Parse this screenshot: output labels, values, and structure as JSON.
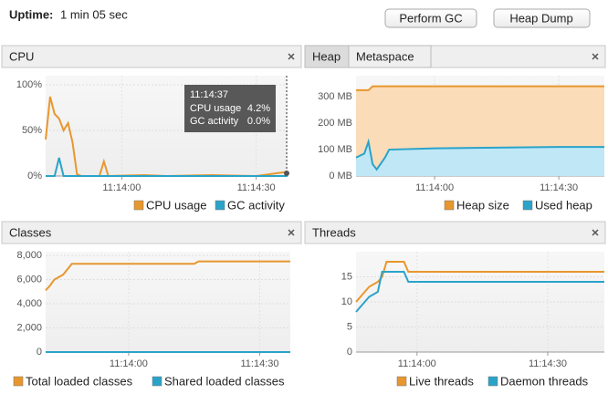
{
  "header": {
    "uptime_label": "Uptime:",
    "uptime_value": "1 min 05 sec",
    "buttons": [
      "Perform GC",
      "Heap Dump"
    ]
  },
  "chart_data": [
    {
      "type": "line",
      "title": "CPU",
      "x": [
        "11:13:43",
        "11:13:44",
        "11:13:45",
        "11:13:46",
        "11:13:47",
        "11:13:48",
        "11:13:49",
        "11:13:50",
        "11:13:51",
        "11:13:55",
        "11:13:56",
        "11:13:57",
        "11:14:05",
        "11:14:10",
        "11:14:20",
        "11:14:30",
        "11:14:36",
        "11:14:37"
      ],
      "series": [
        {
          "name": "CPU usage",
          "color": "#e8972e",
          "values": [
            40,
            87,
            68,
            63,
            50,
            58,
            37,
            2,
            0,
            0,
            16,
            0,
            1,
            0,
            1,
            0,
            4,
            4.2
          ]
        },
        {
          "name": "GC activity",
          "color": "#2aa3c9",
          "values": [
            0,
            0,
            0,
            20,
            0,
            0,
            0,
            0,
            0,
            0,
            0,
            0,
            0,
            0,
            0,
            0,
            0,
            0
          ]
        }
      ],
      "xlim": [
        "11:13:43",
        "11:14:37"
      ],
      "xticks": [
        "11:14:00",
        "11:14:30"
      ],
      "ylim": [
        0,
        110
      ],
      "yticks": [
        {
          "value": 0,
          "label": "0%"
        },
        {
          "value": 50,
          "label": "50%"
        },
        {
          "value": 100,
          "label": "100%"
        }
      ],
      "grid": true,
      "tooltip": {
        "time": "11:14:37",
        "items": [
          {
            "name": "CPU usage",
            "value": "4.2%"
          },
          {
            "name": "GC activity",
            "value": "0.0%"
          }
        ]
      }
    },
    {
      "type": "area",
      "tabs": [
        "Heap",
        "Metaspace"
      ],
      "x": [
        "11:13:41",
        "11:13:43",
        "11:13:44",
        "11:13:45",
        "11:13:46",
        "11:13:48",
        "11:13:49",
        "11:14:00",
        "11:14:30",
        "11:14:41"
      ],
      "series": [
        {
          "name": "Heap size",
          "color": "#e8972e",
          "values": [
            325,
            325,
            325,
            340,
            340,
            340,
            340,
            340,
            340,
            340
          ]
        },
        {
          "name": "Used heap",
          "color": "#2aa3c9",
          "values": [
            70,
            85,
            130,
            45,
            25,
            70,
            100,
            105,
            110,
            110
          ]
        }
      ],
      "xlim": [
        "11:13:41",
        "11:14:41"
      ],
      "xticks": [
        "11:14:00",
        "11:14:30"
      ],
      "ylim": [
        0,
        380
      ],
      "yticks": [
        {
          "value": 0,
          "label": "0 MB"
        },
        {
          "value": 100,
          "label": "100 MB"
        },
        {
          "value": 200,
          "label": "200 MB"
        },
        {
          "value": 300,
          "label": "300 MB"
        }
      ],
      "grid": true
    },
    {
      "type": "line",
      "title": "Classes",
      "x": [
        "11:13:41",
        "11:13:42",
        "11:13:43",
        "11:13:45",
        "11:13:47",
        "11:14:15",
        "11:14:16",
        "11:14:37"
      ],
      "series": [
        {
          "name": "Total loaded classes",
          "color": "#e8972e",
          "values": [
            5100,
            5500,
            6000,
            6400,
            7300,
            7300,
            7500,
            7500
          ]
        },
        {
          "name": "Shared loaded classes",
          "color": "#2aa3c9",
          "values": [
            0,
            0,
            0,
            0,
            0,
            0,
            0,
            0
          ]
        }
      ],
      "xlim": [
        "11:13:41",
        "11:14:37"
      ],
      "xticks": [
        "11:14:00",
        "11:14:30"
      ],
      "ylim": [
        0,
        8300
      ],
      "yticks": [
        0,
        {
          "value": 2000,
          "label": "2,000"
        },
        {
          "value": 4000,
          "label": "4,000"
        },
        {
          "value": 6000,
          "label": "6,000"
        },
        {
          "value": 8000,
          "label": "8,000"
        }
      ],
      "grid": true
    },
    {
      "type": "line",
      "title": "Threads",
      "x": [
        "11:13:46",
        "11:13:47",
        "11:13:48",
        "11:13:49",
        "11:13:51",
        "11:13:52",
        "11:13:53",
        "11:13:57",
        "11:13:58",
        "11:14:43"
      ],
      "series": [
        {
          "name": "Live threads",
          "color": "#e8972e",
          "values": [
            10,
            11,
            12,
            13,
            14,
            15,
            18,
            18,
            16,
            16
          ]
        },
        {
          "name": "Daemon threads",
          "color": "#2aa3c9",
          "values": [
            8,
            9,
            10,
            11,
            12,
            16,
            16,
            16,
            14,
            14
          ]
        }
      ],
      "xlim": [
        "11:13:46",
        "11:14:43"
      ],
      "xticks": [
        "11:14:00",
        "11:14:30"
      ],
      "ylim": [
        0,
        20
      ],
      "yticks": [
        0,
        5,
        10,
        15
      ],
      "grid": true
    }
  ]
}
